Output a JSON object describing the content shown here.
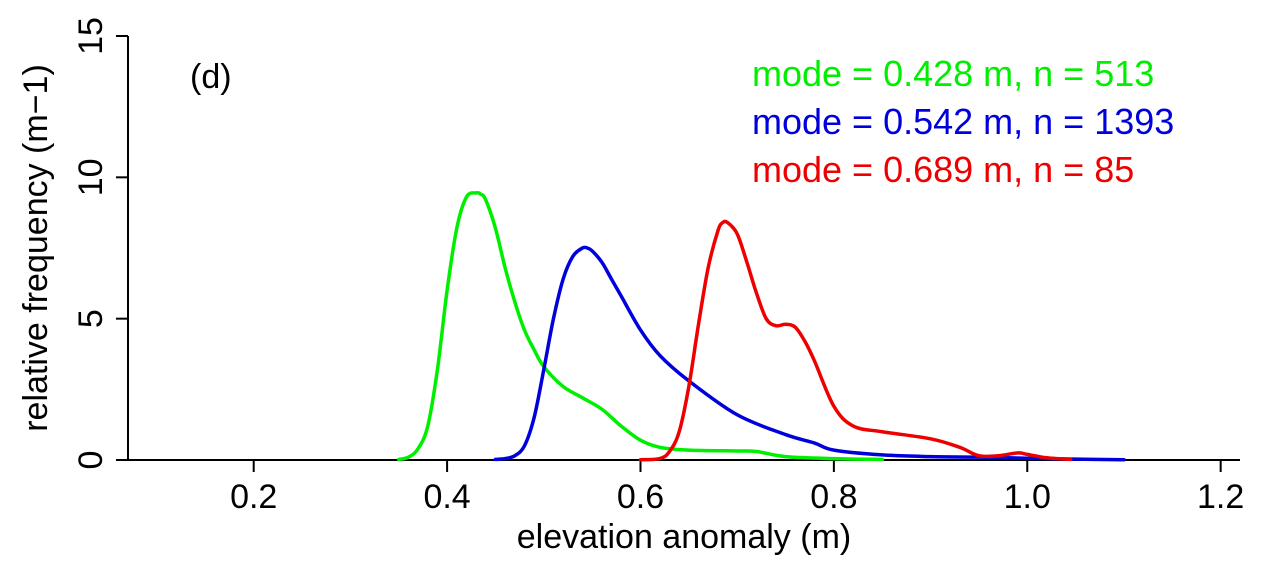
{
  "chart_data": {
    "type": "line",
    "title": "",
    "panel_label": "(d)",
    "xlabel": "elevation anomaly (m)",
    "ylabel": "relative frequency (m−1)",
    "xlim": [
      0.07,
      1.22
    ],
    "ylim": [
      0,
      15
    ],
    "xticks": [
      0.2,
      0.4,
      0.6,
      0.8,
      1.0,
      1.2
    ],
    "xtick_labels": [
      "0.2",
      "0.4",
      "0.6",
      "0.8",
      "1.0",
      "1.2"
    ],
    "yticks": [
      0,
      5,
      10,
      15
    ],
    "ytick_labels": [
      "0",
      "5",
      "10",
      "15"
    ],
    "grid": false,
    "legend_position": "top-right",
    "series": [
      {
        "label": "mode = 0.428 m,  n = 513",
        "color": "#00ee00",
        "x": [
          0.35,
          0.36,
          0.37,
          0.38,
          0.39,
          0.4,
          0.41,
          0.42,
          0.43,
          0.435,
          0.44,
          0.45,
          0.46,
          0.47,
          0.48,
          0.49,
          0.5,
          0.52,
          0.54,
          0.56,
          0.58,
          0.6,
          0.62,
          0.65,
          0.7,
          0.72,
          0.75,
          0.8,
          0.85
        ],
        "y": [
          0.02,
          0.1,
          0.4,
          1.2,
          3.2,
          6.0,
          8.2,
          9.3,
          9.45,
          9.4,
          9.2,
          8.2,
          6.8,
          5.6,
          4.6,
          3.9,
          3.3,
          2.6,
          2.2,
          1.8,
          1.2,
          0.7,
          0.45,
          0.35,
          0.32,
          0.3,
          0.12,
          0.05,
          0.02
        ]
      },
      {
        "label": "mode = 0.542 m,  n = 1393",
        "color": "#0000dd",
        "x": [
          0.45,
          0.46,
          0.47,
          0.48,
          0.49,
          0.5,
          0.51,
          0.52,
          0.53,
          0.54,
          0.545,
          0.55,
          0.56,
          0.57,
          0.58,
          0.6,
          0.62,
          0.65,
          0.7,
          0.75,
          0.78,
          0.8,
          0.85,
          0.9,
          0.95,
          1.0,
          1.05,
          1.1
        ],
        "y": [
          0.02,
          0.05,
          0.15,
          0.5,
          1.5,
          3.2,
          5.0,
          6.4,
          7.2,
          7.5,
          7.5,
          7.4,
          7.0,
          6.4,
          5.8,
          4.6,
          3.7,
          2.8,
          1.6,
          0.9,
          0.6,
          0.35,
          0.18,
          0.12,
          0.1,
          0.06,
          0.03,
          0.01
        ]
      },
      {
        "label": "mode = 0.689 m,  n = 85",
        "color": "#ee0000",
        "x": [
          0.6,
          0.62,
          0.63,
          0.64,
          0.65,
          0.66,
          0.67,
          0.68,
          0.685,
          0.69,
          0.7,
          0.71,
          0.72,
          0.73,
          0.74,
          0.75,
          0.76,
          0.77,
          0.78,
          0.8,
          0.82,
          0.85,
          0.9,
          0.93,
          0.95,
          0.97,
          0.99,
          1.0,
          1.02,
          1.045
        ],
        "y": [
          0.01,
          0.05,
          0.3,
          1.0,
          2.6,
          4.8,
          6.8,
          8.1,
          8.4,
          8.4,
          8.0,
          7.0,
          5.9,
          5.0,
          4.75,
          4.8,
          4.7,
          4.2,
          3.5,
          1.9,
          1.2,
          1.0,
          0.75,
          0.45,
          0.15,
          0.15,
          0.25,
          0.2,
          0.08,
          0.02
        ]
      }
    ]
  }
}
